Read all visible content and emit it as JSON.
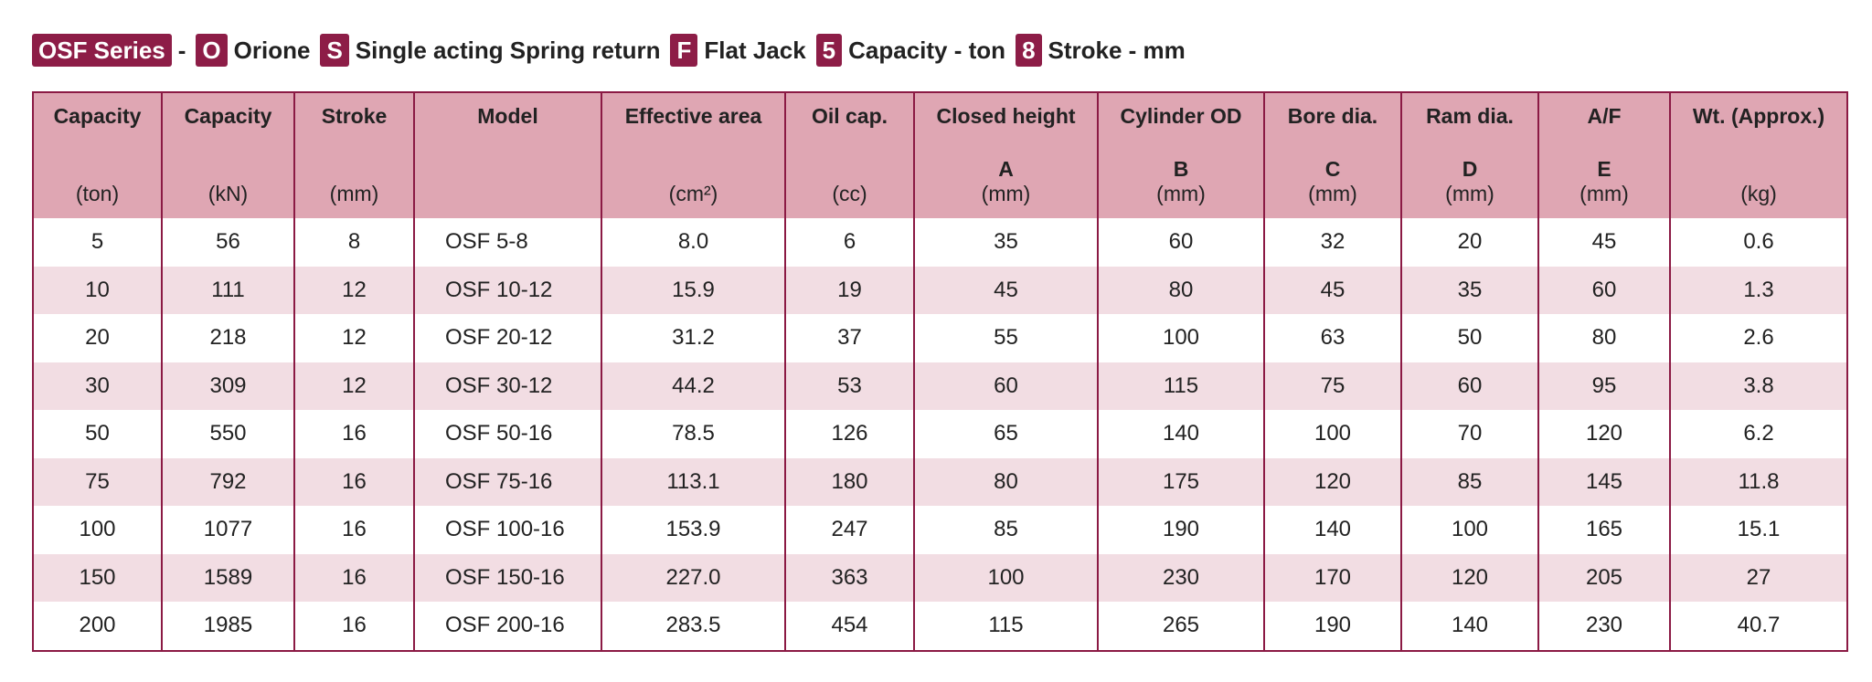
{
  "header": {
    "series": "OSF Series",
    "separator": "-",
    "legend": [
      {
        "code": "O",
        "label": "Orione"
      },
      {
        "code": "S",
        "label": "Single acting Spring return"
      },
      {
        "code": "F",
        "label": "Flat Jack"
      },
      {
        "code": "5",
        "label": "Capacity - ton"
      },
      {
        "code": "8",
        "label": "Stroke - mm"
      }
    ]
  },
  "table": {
    "columns": [
      {
        "name": "Capacity",
        "unit": "(ton)"
      },
      {
        "name": "Capacity",
        "unit": "(kN)"
      },
      {
        "name": "Stroke",
        "unit": "(mm)"
      },
      {
        "name": "Model"
      },
      {
        "name": "Effective area",
        "unit": "(cm²)"
      },
      {
        "name": "Oil cap.",
        "unit": "(cc)"
      },
      {
        "name": "Closed height",
        "letter": "A",
        "unit": "(mm)"
      },
      {
        "name": "Cylinder OD",
        "letter": "B",
        "unit": "(mm)"
      },
      {
        "name": "Bore dia.",
        "letter": "C",
        "unit": "(mm)"
      },
      {
        "name": "Ram dia.",
        "letter": "D",
        "unit": "(mm)"
      },
      {
        "name": "A/F",
        "letter": "E",
        "unit": "(mm)"
      },
      {
        "name": "Wt. (Approx.)",
        "unit": "(kg)"
      }
    ],
    "rows": [
      [
        "5",
        "56",
        "8",
        "OSF 5-8",
        "8.0",
        "6",
        "35",
        "60",
        "32",
        "20",
        "45",
        "0.6"
      ],
      [
        "10",
        "111",
        "12",
        "OSF 10-12",
        "15.9",
        "19",
        "45",
        "80",
        "45",
        "35",
        "60",
        "1.3"
      ],
      [
        "20",
        "218",
        "12",
        "OSF 20-12",
        "31.2",
        "37",
        "55",
        "100",
        "63",
        "50",
        "80",
        "2.6"
      ],
      [
        "30",
        "309",
        "12",
        "OSF 30-12",
        "44.2",
        "53",
        "60",
        "115",
        "75",
        "60",
        "95",
        "3.8"
      ],
      [
        "50",
        "550",
        "16",
        "OSF 50-16",
        "78.5",
        "126",
        "65",
        "140",
        "100",
        "70",
        "120",
        "6.2"
      ],
      [
        "75",
        "792",
        "16",
        "OSF 75-16",
        "113.1",
        "180",
        "80",
        "175",
        "120",
        "85",
        "145",
        "11.8"
      ],
      [
        "100",
        "1077",
        "16",
        "OSF 100-16",
        "153.9",
        "247",
        "85",
        "190",
        "140",
        "100",
        "165",
        "15.1"
      ],
      [
        "150",
        "1589",
        "16",
        "OSF 150-16",
        "227.0",
        "363",
        "100",
        "230",
        "170",
        "120",
        "205",
        "27"
      ],
      [
        "200",
        "1985",
        "16",
        "OSF 200-16",
        "283.5",
        "454",
        "115",
        "265",
        "190",
        "140",
        "230",
        "40.7"
      ]
    ]
  }
}
